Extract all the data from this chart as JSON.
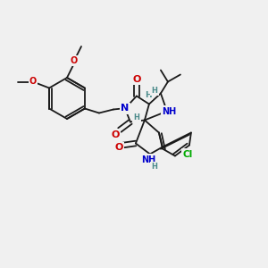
{
  "bg_color": "#f0f0f0",
  "C": "#1a1a1a",
  "N": "#0000cc",
  "O": "#cc0000",
  "Cl": "#00aa00",
  "H": "#4a8a8a",
  "figsize": [
    3.0,
    3.0
  ],
  "dpi": 100
}
